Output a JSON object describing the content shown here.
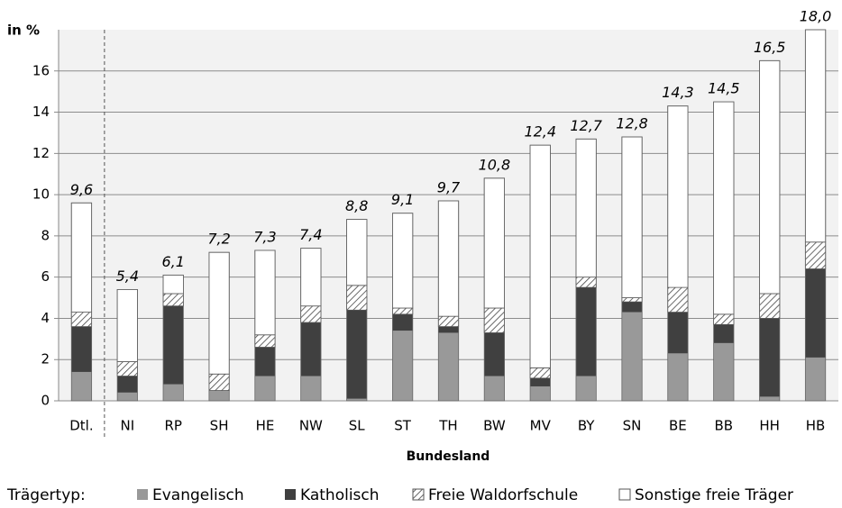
{
  "chart_data": {
    "type": "stacked_bar",
    "y_label": "in %",
    "x_label": "Bundesland",
    "legend_title": "Trägertyp:",
    "categories": [
      "Dtl.",
      "NI",
      "RP",
      "SH",
      "HE",
      "NW",
      "SL",
      "ST",
      "TH",
      "BW",
      "MV",
      "BY",
      "SN",
      "BE",
      "BB",
      "HH",
      "HB"
    ],
    "series": [
      {
        "name": "Evangelisch",
        "color": "#999999",
        "values": [
          1.4,
          0.4,
          0.8,
          0.5,
          1.2,
          1.2,
          0.1,
          3.4,
          3.3,
          1.2,
          0.7,
          1.2,
          4.3,
          2.3,
          2.8,
          0.2,
          2.1
        ]
      },
      {
        "name": "Katholisch",
        "color": "#404040",
        "values": [
          2.2,
          0.8,
          3.8,
          0.0,
          1.4,
          2.6,
          4.3,
          0.8,
          0.3,
          2.1,
          0.4,
          4.3,
          0.5,
          2.0,
          0.9,
          3.8,
          4.3
        ]
      },
      {
        "name": "Freie Waldorfschule",
        "color": "#444444",
        "values": [
          0.7,
          0.7,
          0.6,
          0.8,
          0.6,
          0.8,
          1.2,
          0.3,
          0.5,
          1.2,
          0.5,
          0.5,
          0.2,
          1.2,
          0.5,
          1.2,
          1.3
        ]
      },
      {
        "name": "Sonstige freie Träger",
        "color": "#ffffff",
        "values": [
          5.3,
          3.5,
          0.9,
          5.9,
          4.1,
          2.8,
          3.2,
          4.6,
          5.6,
          6.3,
          10.8,
          6.7,
          7.8,
          8.8,
          10.3,
          11.3,
          10.3
        ]
      }
    ],
    "totals": [
      9.6,
      5.4,
      6.1,
      7.2,
      7.3,
      7.4,
      8.8,
      9.1,
      9.7,
      10.8,
      12.4,
      12.7,
      12.8,
      14.3,
      14.5,
      16.5,
      18.0
    ],
    "total_labels": [
      "9,6",
      "5,4",
      "6,1",
      "7,2",
      "7,3",
      "7,4",
      "8,8",
      "9,1",
      "9,7",
      "10,8",
      "12,4",
      "12,7",
      "12,8",
      "14,3",
      "14,5",
      "16,5",
      "18,0"
    ],
    "ylim": [
      0,
      18
    ],
    "yticks": [
      0,
      2,
      4,
      6,
      8,
      10,
      12,
      14,
      16
    ],
    "grid": true
  }
}
